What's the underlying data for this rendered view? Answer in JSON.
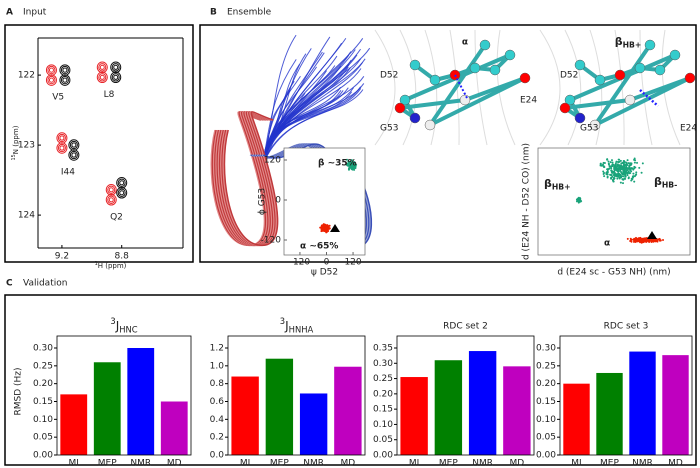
{
  "panels": [
    {
      "letter": "A",
      "title": "Input"
    },
    {
      "letter": "B",
      "title": "Ensemble"
    },
    {
      "letter": "C",
      "title": "Validation"
    }
  ],
  "structures": [
    {
      "title": "α",
      "residues": [
        "D52",
        "E24",
        "G53"
      ]
    },
    {
      "title": {
        "base": "β",
        "sub": "HB+"
      },
      "residues": [
        "D52",
        "G53",
        "E24"
      ]
    }
  ],
  "chart_data": [
    {
      "type": "spectrum",
      "xlabel": {
        "sup": "1",
        "base": "H (ppm)"
      },
      "ylabel": {
        "sup": "15",
        "base": "N (ppm)"
      },
      "xlim": [
        9.36,
        8.39
      ],
      "ylim": [
        121.47,
        124.47
      ],
      "xticks": [
        9.2,
        8.8
      ],
      "yticks": [
        122,
        123,
        124
      ],
      "peak_labels": [
        "V5",
        "L8",
        "I44",
        "Q2"
      ],
      "series": [
        {
          "color": "#e8262a",
          "x": [
            9.27,
            8.93,
            9.2,
            8.87
          ],
          "y": [
            122.0,
            121.96,
            122.97,
            123.71
          ]
        },
        {
          "color": "#111111",
          "x": [
            9.18,
            8.84,
            9.12,
            8.8
          ],
          "y": [
            122.0,
            121.96,
            123.07,
            123.61
          ]
        }
      ]
    },
    {
      "type": "scatter",
      "xlabel": "ψ D52",
      "ylabel": "ϕ G53",
      "xlim": [
        -192,
        174
      ],
      "ylim": [
        -165,
        156
      ],
      "xticks": [
        -120,
        0,
        120
      ],
      "yticks": [
        -120,
        0,
        120
      ],
      "annotations": [
        "β ~35%",
        "α ~65%"
      ]
    },
    {
      "type": "scatter",
      "xlabel": "d (E24 sc - G53 NH) (nm)",
      "ylabel": "d (E24 NH - D52 CO) (nm)",
      "annotations": [
        {
          "base": "β",
          "sub": "HB+"
        },
        {
          "base": "β",
          "sub": "HB-"
        },
        "α"
      ]
    },
    {
      "type": "bar",
      "title": {
        "sup": "3",
        "base": "J",
        "sub": "HNC"
      },
      "ylabel": "RMSD (Hz)",
      "categories": [
        "MI",
        "MEP",
        "NMR",
        "MD"
      ],
      "values": [
        0.17,
        0.26,
        0.3,
        0.15
      ],
      "colors": [
        "#ff0000",
        "#008000",
        "#0000ff",
        "#bf00bf"
      ],
      "ylim": [
        0,
        0.3
      ],
      "yticks": [
        {
          "value": 0,
          "label": "0.00"
        },
        0.05,
        {
          "value": 0.1,
          "label": "0.10"
        },
        0.15,
        {
          "value": 0.2,
          "label": "0.20"
        },
        0.25,
        {
          "value": 0.3,
          "label": "0.30"
        }
      ]
    },
    {
      "type": "bar",
      "title": {
        "sup": "3",
        "base": "J",
        "sub": "HNHA"
      },
      "categories": [
        "MI",
        "MEP",
        "NMR",
        "MD"
      ],
      "values": [
        0.88,
        1.08,
        0.69,
        0.99
      ],
      "colors": [
        "#ff0000",
        "#008000",
        "#0000ff",
        "#bf00bf"
      ],
      "ylim": [
        0,
        1.2
      ],
      "yticks": [
        {
          "value": 0,
          "label": "0.0"
        },
        0.2,
        0.4,
        0.6,
        0.8,
        {
          "value": 1,
          "label": "1.0"
        },
        1.2
      ]
    },
    {
      "type": "bar",
      "title": "RDC set 2",
      "categories": [
        "MI",
        "MEP",
        "NMR",
        "MD"
      ],
      "values": [
        0.255,
        0.31,
        0.34,
        0.29
      ],
      "colors": [
        "#ff0000",
        "#008000",
        "#0000ff",
        "#bf00bf"
      ],
      "ylim": [
        0,
        0.35
      ],
      "yticks": [
        {
          "value": 0,
          "label": "0.00"
        },
        0.05,
        {
          "value": 0.1,
          "label": "0.10"
        },
        0.15,
        {
          "value": 0.2,
          "label": "0.20"
        },
        0.25,
        {
          "value": 0.3,
          "label": "0.30"
        },
        0.35
      ]
    },
    {
      "type": "bar",
      "title": "RDC set 3",
      "categories": [
        "MI",
        "MEP",
        "NMR",
        "MD"
      ],
      "values": [
        0.2,
        0.23,
        0.29,
        0.28
      ],
      "colors": [
        "#ff0000",
        "#008000",
        "#0000ff",
        "#bf00bf"
      ],
      "ylim": [
        0,
        0.3
      ],
      "yticks": [
        {
          "value": 0,
          "label": "0.00"
        },
        0.05,
        {
          "value": 0.1,
          "label": "0.10"
        },
        0.15,
        {
          "value": 0.2,
          "label": "0.20"
        },
        0.25,
        {
          "value": 0.3,
          "label": "0.30"
        }
      ]
    }
  ]
}
